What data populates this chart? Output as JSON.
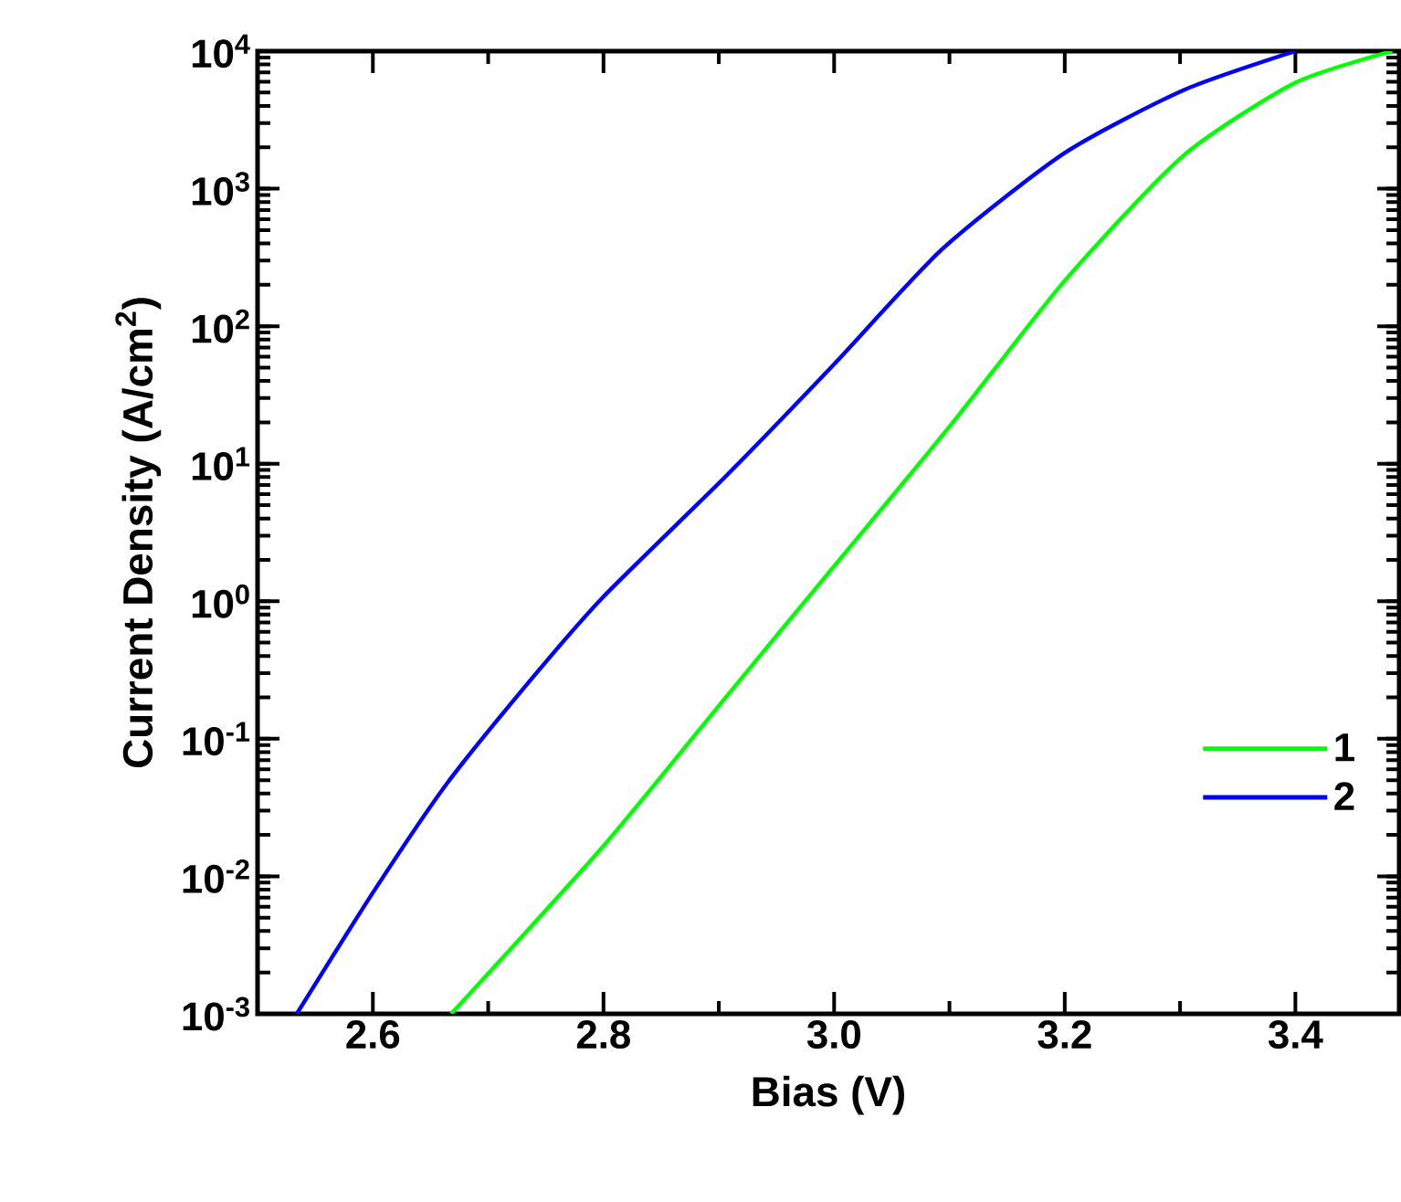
{
  "chart_data": {
    "type": "line",
    "xlabel": "Bias (V)",
    "ylabel": "Current Density (A/cm$^{2}$)",
    "log": "y",
    "legend": "right",
    "grid": false,
    "marker": "none",
    "line_style": "solid",
    "xlim": [
      2.5,
      3.49
    ],
    "xticks": [
      {
        "value": 2.6,
        "label": "2.6"
      },
      {
        "value": 2.8,
        "label": "2.8"
      },
      {
        "value": 3.0,
        "label": "3.0"
      },
      {
        "value": 3.2,
        "label": "3.2"
      },
      {
        "value": 3.4,
        "label": "3.4"
      }
    ],
    "ylim": [
      0.001,
      10000
    ],
    "yticks": [
      {
        "value": 0.001,
        "label": "10$^{-3}$"
      },
      {
        "value": 0.01,
        "label": "10$^{-2}$"
      },
      {
        "value": 0.1,
        "label": "10$^{-1}$"
      },
      {
        "value": 1,
        "label": "10$^{0}$"
      },
      {
        "value": 10,
        "label": "10$^{1}$"
      },
      {
        "value": 100,
        "label": "10$^{2}$"
      },
      {
        "value": 1000,
        "label": "10$^{3}$"
      },
      {
        "value": 10000,
        "label": "10$^{4}$"
      }
    ],
    "series": [
      {
        "name": "1",
        "color": "#00ff00",
        "x": [
          2.668,
          2.8,
          2.906,
          3.0,
          3.101,
          3.2,
          3.303,
          3.4,
          3.484
        ],
        "values": [
          0.001,
          0.0166,
          0.2,
          1.8,
          19,
          214,
          1740,
          5900,
          10000
        ]
      },
      {
        "name": "2",
        "color": "#0000ff",
        "x": [
          2.534,
          2.6,
          2.664,
          2.738,
          2.8,
          2.906,
          3.0,
          3.094,
          3.2,
          3.303,
          3.4
        ],
        "values": [
          0.001,
          0.0076,
          0.047,
          0.275,
          1.08,
          8.1,
          53,
          365,
          1820,
          5200,
          10000
        ]
      }
    ]
  }
}
